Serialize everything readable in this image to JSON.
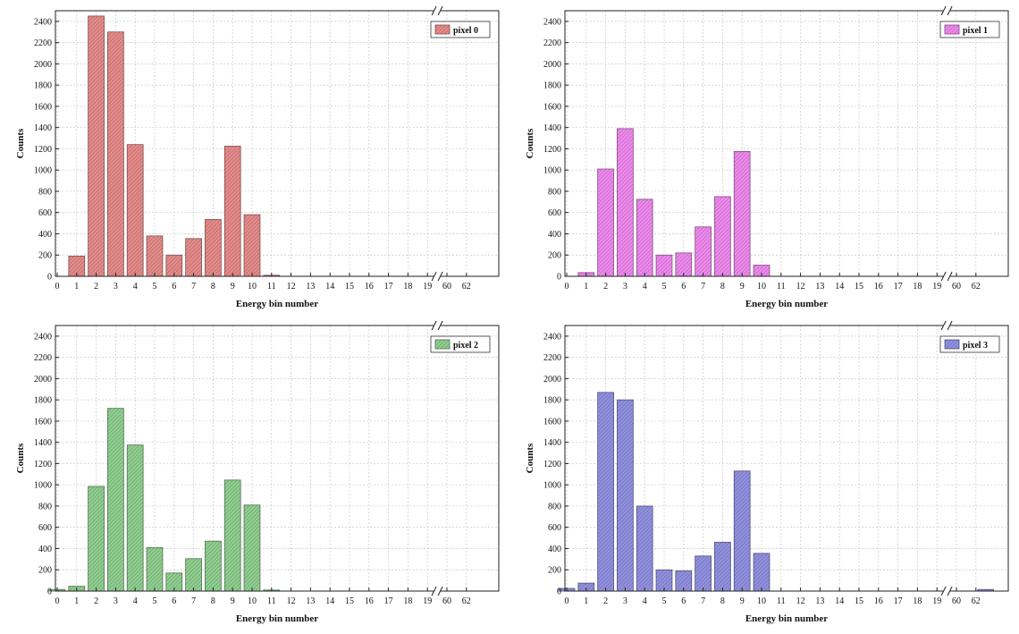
{
  "chart_data": [
    {
      "type": "bar",
      "xlabel": "Energy bin number",
      "ylabel": "Counts",
      "ylim": [
        0,
        2500
      ],
      "yticks": [
        0,
        200,
        400,
        600,
        800,
        1000,
        1200,
        1400,
        1600,
        1800,
        2000,
        2200,
        2400
      ],
      "xticks": [
        "0",
        "1",
        "2",
        "3",
        "4",
        "5",
        "6",
        "7",
        "8",
        "9",
        "10",
        "11",
        "12",
        "13",
        "14",
        "15",
        "16",
        "17",
        "18",
        "19",
        "60",
        "62"
      ],
      "axis_break": {
        "between": [
          "19",
          "60"
        ],
        "marker": "//"
      },
      "grid": true,
      "legend": {
        "placement": "top-right",
        "label": "pixel 0"
      },
      "color": "#e58a8a",
      "categories": [
        "0",
        "1",
        "2",
        "3",
        "4",
        "5",
        "6",
        "7",
        "8",
        "9",
        "10",
        "11",
        "12",
        "13",
        "14",
        "15",
        "16",
        "17",
        "18",
        "19",
        "60",
        "61",
        "62",
        "63"
      ],
      "values": [
        0,
        190,
        2450,
        2300,
        1240,
        380,
        200,
        355,
        535,
        1225,
        580,
        10,
        0,
        0,
        0,
        0,
        0,
        0,
        0,
        0,
        0,
        0,
        0,
        0
      ]
    },
    {
      "type": "bar",
      "xlabel": "Energy bin number",
      "ylabel": "Counts",
      "ylim": [
        0,
        2500
      ],
      "yticks": [
        0,
        200,
        400,
        600,
        800,
        1000,
        1200,
        1400,
        1600,
        1800,
        2000,
        2200,
        2400
      ],
      "xticks": [
        "0",
        "1",
        "2",
        "3",
        "4",
        "5",
        "6",
        "7",
        "8",
        "9",
        "10",
        "11",
        "12",
        "13",
        "14",
        "15",
        "16",
        "17",
        "18",
        "19",
        "60",
        "62"
      ],
      "axis_break": {
        "between": [
          "19",
          "60"
        ],
        "marker": "//"
      },
      "grid": true,
      "legend": {
        "placement": "top-right",
        "label": "pixel 1"
      },
      "color": "#ee88ee",
      "categories": [
        "0",
        "1",
        "2",
        "3",
        "4",
        "5",
        "6",
        "7",
        "8",
        "9",
        "10",
        "11",
        "12",
        "13",
        "14",
        "15",
        "16",
        "17",
        "18",
        "19",
        "60",
        "61",
        "62",
        "63"
      ],
      "values": [
        0,
        35,
        1010,
        1390,
        725,
        200,
        220,
        465,
        750,
        1175,
        105,
        0,
        0,
        0,
        0,
        0,
        0,
        0,
        0,
        0,
        0,
        0,
        0,
        0
      ]
    },
    {
      "type": "bar",
      "xlabel": "Energy bin number",
      "ylabel": "Counts",
      "ylim": [
        0,
        2500
      ],
      "yticks": [
        0,
        200,
        400,
        600,
        800,
        1000,
        1200,
        1400,
        1600,
        1800,
        2000,
        2200,
        2400
      ],
      "xticks": [
        "0",
        "1",
        "2",
        "3",
        "4",
        "5",
        "6",
        "7",
        "8",
        "9",
        "10",
        "11",
        "12",
        "13",
        "14",
        "15",
        "16",
        "17",
        "18",
        "19",
        "60",
        "62"
      ],
      "axis_break": {
        "between": [
          "19",
          "60"
        ],
        "marker": "//"
      },
      "grid": true,
      "legend": {
        "placement": "top-right",
        "label": "pixel 2"
      },
      "color": "#8fce8f",
      "categories": [
        "0",
        "1",
        "2",
        "3",
        "4",
        "5",
        "6",
        "7",
        "8",
        "9",
        "10",
        "11",
        "12",
        "13",
        "14",
        "15",
        "16",
        "17",
        "18",
        "19",
        "60",
        "61",
        "62",
        "63"
      ],
      "values": [
        15,
        45,
        985,
        1720,
        1375,
        410,
        170,
        305,
        470,
        1045,
        810,
        10,
        0,
        0,
        0,
        0,
        0,
        0,
        0,
        0,
        0,
        0,
        0,
        0
      ]
    },
    {
      "type": "bar",
      "xlabel": "Energy bin number",
      "ylabel": "Counts",
      "ylim": [
        0,
        2500
      ],
      "yticks": [
        0,
        200,
        400,
        600,
        800,
        1000,
        1200,
        1400,
        1600,
        1800,
        2000,
        2200,
        2400
      ],
      "xticks": [
        "0",
        "1",
        "2",
        "3",
        "4",
        "5",
        "6",
        "7",
        "8",
        "9",
        "10",
        "11",
        "12",
        "13",
        "14",
        "15",
        "16",
        "17",
        "18",
        "19",
        "60",
        "62"
      ],
      "axis_break": {
        "between": [
          "19",
          "60"
        ],
        "marker": "//"
      },
      "grid": true,
      "legend": {
        "placement": "top-right",
        "label": "pixel 3"
      },
      "color": "#9090e0",
      "categories": [
        "0",
        "1",
        "2",
        "3",
        "4",
        "5",
        "6",
        "7",
        "8",
        "9",
        "10",
        "11",
        "12",
        "13",
        "14",
        "15",
        "16",
        "17",
        "18",
        "19",
        "60",
        "61",
        "62",
        "63"
      ],
      "values": [
        25,
        75,
        1870,
        1800,
        800,
        200,
        190,
        330,
        460,
        1130,
        355,
        0,
        0,
        0,
        0,
        0,
        0,
        0,
        0,
        0,
        0,
        0,
        0,
        15
      ]
    }
  ]
}
